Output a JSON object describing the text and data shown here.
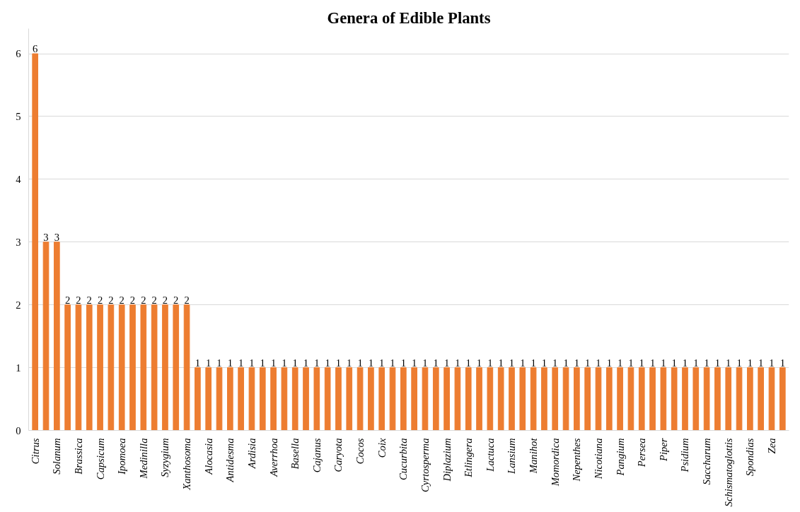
{
  "chart_data": {
    "type": "bar",
    "title": "Genera of Edible Plants",
    "categories": [
      "Citrus",
      null,
      "Solanum",
      null,
      "Brassica",
      null,
      "Capsicum",
      null,
      "Ipomoea",
      null,
      "Medinilla",
      null,
      "Syzygium",
      null,
      "Xanthosoma",
      null,
      "Alocasia",
      null,
      "Antidesma",
      null,
      "Ardisia",
      null,
      "Averrhoa",
      null,
      "Basella",
      null,
      "Cajanus",
      null,
      "Caryota",
      null,
      "Cocos",
      null,
      "Coix",
      null,
      "Cucurbita",
      null,
      "Cyrtosperma",
      null,
      "Diplazium",
      null,
      "Etlingera",
      null,
      "Lactuca",
      null,
      "Lansium",
      null,
      "Manihot",
      null,
      "Momordica",
      null,
      "Nepenthes",
      null,
      "Nicotiana",
      null,
      "Pangium",
      null,
      "Persea",
      null,
      "Piper",
      null,
      "Psidium",
      null,
      "Saccharum",
      null,
      "Schismatoglottis",
      null,
      "Spondias",
      null,
      "Zea",
      null
    ],
    "values": [
      6,
      3,
      3,
      2,
      2,
      2,
      2,
      2,
      2,
      2,
      2,
      2,
      2,
      2,
      2,
      1,
      1,
      1,
      1,
      1,
      1,
      1,
      1,
      1,
      1,
      1,
      1,
      1,
      1,
      1,
      1,
      1,
      1,
      1,
      1,
      1,
      1,
      1,
      1,
      1,
      1,
      1,
      1,
      1,
      1,
      1,
      1,
      1,
      1,
      1,
      1,
      1,
      1,
      1,
      1,
      1,
      1,
      1,
      1,
      1,
      1,
      1,
      1,
      1,
      1,
      1,
      1,
      1,
      1,
      1
    ],
    "color": "#ed7d31",
    "ylim": [
      0,
      6.4
    ],
    "yticks": [
      0,
      1,
      2,
      3,
      4,
      5,
      6
    ],
    "grid": "y",
    "data_labels": true
  }
}
